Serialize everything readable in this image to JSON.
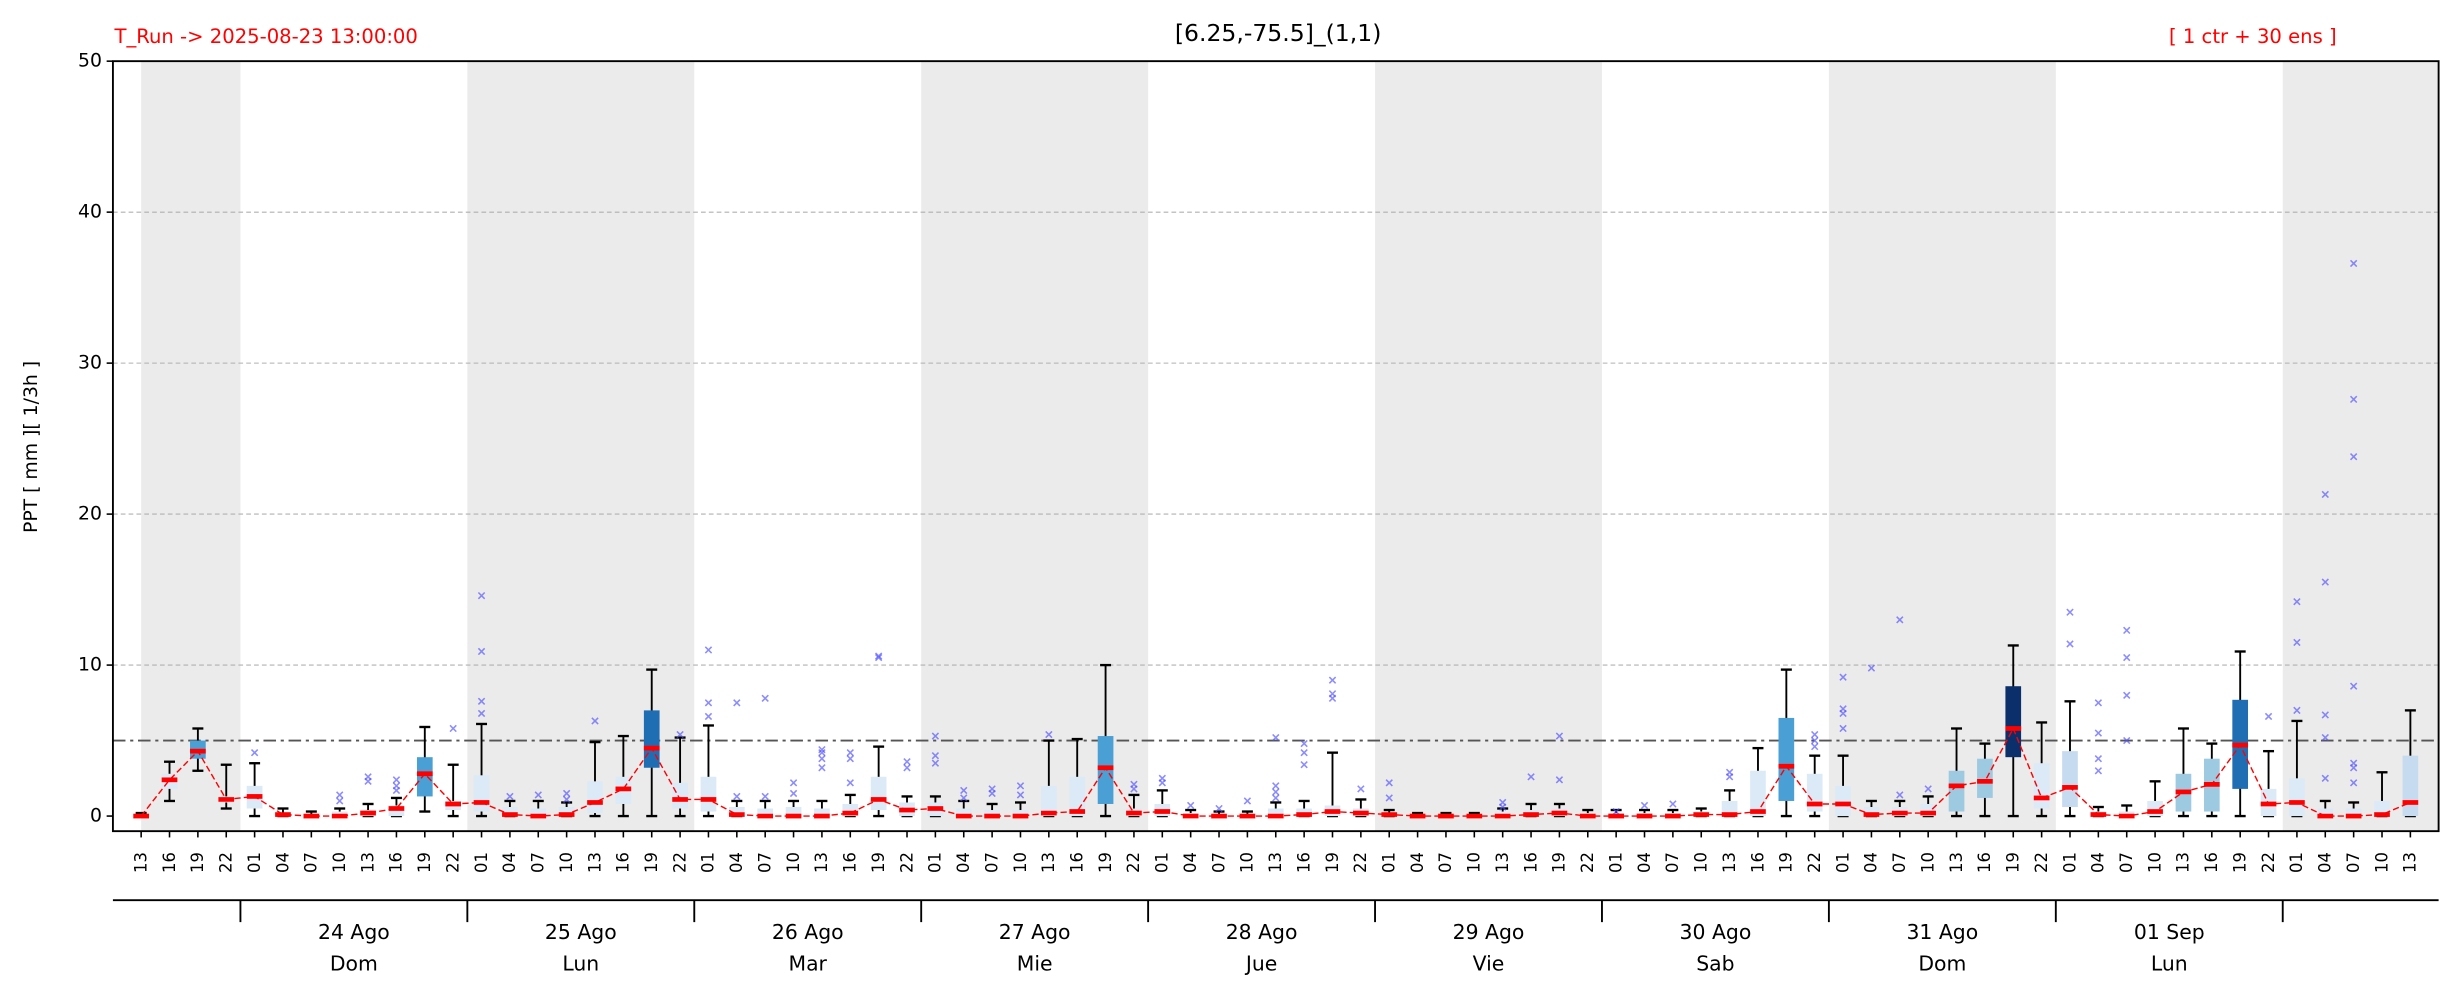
{
  "chart_data": {
    "type": "box",
    "title": "[6.25,-75.5]_(1,1)",
    "run_label": "T_Run -> 2025-08-23  13:00:00",
    "ensemble_label": "[ 1 ctr + 30 ens ]",
    "y_label": "PPT  [ mm ][ 1/3h ]",
    "categories": [
      "13",
      "16",
      "19",
      "22",
      "01",
      "04",
      "07",
      "10",
      "13",
      "16",
      "19",
      "22",
      "01",
      "04",
      "07",
      "10",
      "13",
      "16",
      "19",
      "22",
      "01",
      "04",
      "07",
      "10",
      "13",
      "16",
      "19",
      "22",
      "01",
      "04",
      "07",
      "10",
      "13",
      "16",
      "19",
      "22",
      "01",
      "04",
      "07",
      "10",
      "13",
      "16",
      "19",
      "22",
      "01",
      "04",
      "07",
      "10",
      "13",
      "16",
      "19",
      "22",
      "01",
      "04",
      "07",
      "10",
      "13",
      "16",
      "19",
      "22",
      "01",
      "04",
      "07",
      "10",
      "13",
      "16",
      "19",
      "22",
      "01",
      "04",
      "07",
      "10",
      "13",
      "16",
      "19",
      "22",
      "01",
      "04",
      "07",
      "10",
      "13"
    ],
    "days": [
      {
        "date": "24 Ago",
        "weekday": "Dom"
      },
      {
        "date": "25 Ago",
        "weekday": "Lun"
      },
      {
        "date": "26 Ago",
        "weekday": "Mar"
      },
      {
        "date": "27 Ago",
        "weekday": "Mie"
      },
      {
        "date": "28 Ago",
        "weekday": "Jue"
      },
      {
        "date": "29 Ago",
        "weekday": "Vie"
      },
      {
        "date": "30 Ago",
        "weekday": "Sab"
      },
      {
        "date": "31 Ago",
        "weekday": "Dom"
      },
      {
        "date": "01 Sep",
        "weekday": "Lun"
      }
    ],
    "medians": [
      0,
      2.4,
      4.3,
      1.1,
      1.3,
      0.1,
      0,
      0,
      0.2,
      0.5,
      2.8,
      0.8,
      0.9,
      0.1,
      0,
      0.1,
      0.9,
      1.8,
      4.5,
      1.1,
      1.1,
      0.1,
      0,
      0,
      0,
      0.2,
      1.1,
      0.4,
      0.5,
      0,
      0,
      0,
      0.2,
      0.3,
      3.2,
      0.2,
      0.3,
      0,
      0,
      0,
      0,
      0.1,
      0.3,
      0.2,
      0.1,
      0,
      0,
      0,
      0,
      0.1,
      0.2,
      0,
      0,
      0,
      0,
      0.1,
      0.1,
      0.3,
      3.3,
      0.8,
      0.8,
      0.1,
      0.2,
      0.2,
      2.0,
      2.3,
      5.8,
      1.2,
      1.9,
      0.1,
      0,
      0.3,
      1.6,
      2.1,
      4.7,
      0.8,
      0.9,
      0,
      0,
      0.1,
      0.9
    ],
    "q1": [
      0,
      1.8,
      3.8,
      0.9,
      0.5,
      0,
      0,
      0,
      0,
      0,
      1.3,
      0.4,
      0.3,
      0,
      0,
      0,
      0.2,
      0.8,
      3.2,
      0.5,
      0.3,
      0,
      0,
      0,
      0,
      0,
      0.4,
      0,
      0,
      0,
      0,
      0,
      0,
      0,
      0.8,
      0,
      0,
      0,
      0,
      0,
      0,
      0,
      0,
      0,
      0,
      0,
      0,
      0,
      0,
      0,
      0,
      0,
      0,
      0,
      0,
      0,
      0,
      0,
      1.0,
      0.3,
      0,
      0,
      0,
      0,
      0.3,
      1.2,
      3.9,
      0.5,
      0.6,
      0,
      0,
      0,
      0.3,
      0.3,
      1.8,
      0,
      0,
      0,
      0,
      0,
      0
    ],
    "q3": [
      0.1,
      2.8,
      5,
      1.3,
      2,
      0.2,
      0.1,
      0.3,
      0.4,
      0.7,
      3.9,
      1,
      2.7,
      0.6,
      0.5,
      0.6,
      2.3,
      2.6,
      7,
      2.2,
      2.6,
      0.6,
      0.5,
      0.6,
      0.5,
      0.8,
      2.6,
      0.9,
      0.9,
      0.5,
      0.4,
      0.4,
      2.0,
      2.6,
      5.3,
      0.5,
      0.8,
      0.2,
      0.1,
      0.1,
      0.5,
      0.5,
      0.7,
      0.5,
      0.2,
      0.1,
      0.1,
      0.1,
      0.3,
      0.4,
      0.5,
      0.2,
      0.2,
      0.2,
      0.2,
      0.3,
      1,
      3,
      6.5,
      2.8,
      2,
      0.6,
      0.6,
      0.8,
      3,
      3.8,
      8.6,
      3.5,
      4.3,
      0.3,
      0.3,
      1,
      2.8,
      3.8,
      7.7,
      1.8,
      2.5,
      0.5,
      0.5,
      1,
      4
    ],
    "whisker_low": [
      0,
      1,
      3,
      0.5,
      0,
      0,
      0,
      0,
      0,
      0,
      0.3,
      0,
      0,
      0,
      0,
      0,
      0,
      0,
      0,
      0,
      0,
      0,
      0,
      0,
      0,
      0,
      0,
      0,
      0,
      0,
      0,
      0,
      0,
      0,
      0,
      0,
      0,
      0,
      0,
      0,
      0,
      0,
      0,
      0,
      0,
      0,
      0,
      0,
      0,
      0,
      0,
      0,
      0,
      0,
      0,
      0,
      0,
      0,
      0,
      0,
      0,
      0,
      0,
      0,
      0,
      0,
      0,
      0,
      0,
      0,
      0,
      0,
      0,
      0,
      0,
      0,
      0,
      0,
      0,
      0,
      0
    ],
    "whisker_high": [
      0.2,
      3.6,
      5.8,
      3.4,
      3.5,
      0.5,
      0.3,
      0.5,
      0.8,
      1.2,
      5.9,
      3.4,
      6.1,
      1,
      1,
      0.9,
      4.9,
      5.3,
      9.7,
      5.2,
      6,
      1,
      1,
      1,
      1,
      1.4,
      4.6,
      1.3,
      1.3,
      1,
      0.8,
      0.9,
      5,
      5.1,
      10,
      1.4,
      1.7,
      0.4,
      0.3,
      0.3,
      0.9,
      1,
      4.2,
      1.1,
      0.4,
      0.2,
      0.2,
      0.2,
      0.5,
      0.8,
      0.8,
      0.4,
      0.4,
      0.4,
      0.4,
      0.5,
      1.7,
      4.5,
      9.7,
      4,
      4,
      1,
      1,
      1.3,
      5.8,
      4.8,
      11.3,
      6.2,
      7.6,
      0.6,
      0.7,
      2.3,
      5.8,
      4.8,
      10.9,
      4.3,
      6.3,
      1,
      0.9,
      2.9,
      7
    ],
    "outliers": [
      [],
      [],
      [],
      [],
      [
        4.2
      ],
      [],
      [],
      [
        1.0,
        1.4
      ],
      [
        2.3,
        2.6
      ],
      [
        1.7,
        2.0,
        2.4
      ],
      [],
      [
        5.8
      ],
      [
        6.8,
        7.6,
        10.9,
        14.6
      ],
      [
        1.3
      ],
      [
        1.4
      ],
      [
        1.1,
        1.5
      ],
      [
        6.3
      ],
      [],
      [],
      [
        5.4
      ],
      [
        6.6,
        7.5,
        11.0
      ],
      [
        1.3,
        7.5
      ],
      [
        1.3,
        7.8
      ],
      [
        1.5,
        2.2
      ],
      [
        3.2,
        3.8,
        4.2,
        4.4
      ],
      [
        2.2,
        3.8,
        4.2
      ],
      [
        10.5,
        10.6
      ],
      [
        3.2,
        3.6
      ],
      [
        3.5,
        4.0,
        5.3
      ],
      [
        1.2,
        1.7
      ],
      [
        1.5,
        1.8
      ],
      [
        1.4,
        2.0
      ],
      [
        5.4
      ],
      [],
      [],
      [
        1.8,
        2.1
      ],
      [
        2.2,
        2.5
      ],
      [
        0.7
      ],
      [
        0.5
      ],
      [
        1.0
      ],
      [
        1.2,
        1.6,
        2.0,
        5.2
      ],
      [
        3.4,
        4.2,
        4.8
      ],
      [
        7.8,
        8.1,
        9.0
      ],
      [
        1.8
      ],
      [
        1.2,
        2.2
      ],
      [],
      [],
      [],
      [
        0.6,
        0.9
      ],
      [
        2.6
      ],
      [
        2.4,
        5.3
      ],
      [],
      [
        0.3
      ],
      [
        0.7
      ],
      [
        0.8
      ],
      [],
      [
        2.6,
        2.9
      ],
      [],
      [],
      [
        4.6,
        5.0,
        5.4
      ],
      [
        5.8,
        6.8,
        7.1,
        9.2
      ],
      [
        9.8
      ],
      [
        1.4,
        13.0
      ],
      [
        1.8
      ],
      [],
      [],
      [],
      [],
      [
        11.4,
        13.5
      ],
      [
        3.0,
        3.8,
        5.5,
        7.5
      ],
      [
        5.0,
        8.0,
        10.5,
        12.3
      ],
      [],
      [],
      [],
      [],
      [
        6.6
      ],
      [
        7.0,
        11.5,
        14.2
      ],
      [
        2.5,
        5.2,
        6.7,
        15.5,
        21.3
      ],
      [
        2.2,
        3.2,
        3.5,
        8.6,
        23.8,
        27.6,
        36.6
      ],
      [],
      []
    ],
    "box_colors": [
      "#dceaf7",
      "#dceaf7",
      "#4a9fd4",
      "#dceaf7",
      "#dceaf7",
      "#dceaf7",
      "#dceaf7",
      "#dceaf7",
      "#dceaf7",
      "#dceaf7",
      "#4a9fd4",
      "#dceaf7",
      "#dceaf7",
      "#dceaf7",
      "#dceaf7",
      "#dceaf7",
      "#dceaf7",
      "#dceaf7",
      "#1f6eb4",
      "#dceaf7",
      "#dceaf7",
      "#dceaf7",
      "#dceaf7",
      "#dceaf7",
      "#dceaf7",
      "#dceaf7",
      "#dceaf7",
      "#dceaf7",
      "#dceaf7",
      "#dceaf7",
      "#dceaf7",
      "#dceaf7",
      "#dceaf7",
      "#dceaf7",
      "#4a9fd4",
      "#dceaf7",
      "#dceaf7",
      "#dceaf7",
      "#dceaf7",
      "#dceaf7",
      "#dceaf7",
      "#dceaf7",
      "#dceaf7",
      "#dceaf7",
      "#dceaf7",
      "#dceaf7",
      "#dceaf7",
      "#dceaf7",
      "#dceaf7",
      "#dceaf7",
      "#dceaf7",
      "#dceaf7",
      "#dceaf7",
      "#dceaf7",
      "#dceaf7",
      "#dceaf7",
      "#dceaf7",
      "#dceaf7",
      "#4a9fd4",
      "#dceaf7",
      "#dceaf7",
      "#dceaf7",
      "#dceaf7",
      "#dceaf7",
      "#9ecae1",
      "#9ecae1",
      "#0b2f6b",
      "#dceaf7",
      "#c6dbef",
      "#dceaf7",
      "#dceaf7",
      "#dceaf7",
      "#9ecae1",
      "#9ecae1",
      "#1f6eb4",
      "#dceaf7",
      "#dceaf7",
      "#dceaf7",
      "#dceaf7",
      "#dceaf7",
      "#c6dbef"
    ],
    "median_color": "#ff0000",
    "outlier_color": "#5050ff",
    "threshold": 5,
    "ylim": [
      -1,
      50
    ],
    "yticks": [
      0,
      10,
      20,
      30,
      40,
      50
    ],
    "grid": true
  }
}
